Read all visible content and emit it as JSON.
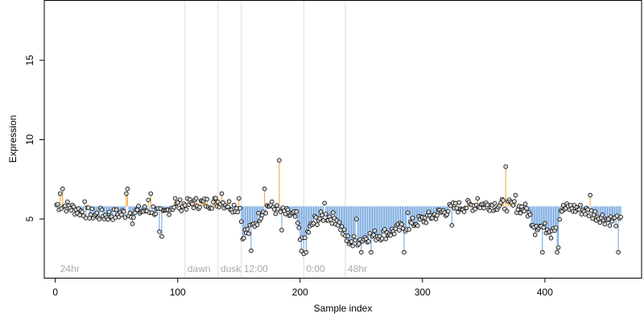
{
  "chart_data": {
    "type": "scatter",
    "xlabel": "Sample index",
    "ylabel": "Expression",
    "xlim": [
      -9,
      479
    ],
    "ylim": [
      1.3,
      18.8
    ],
    "x_ticks": [
      0,
      100,
      200,
      300,
      400
    ],
    "y_ticks": [
      5,
      10,
      15
    ],
    "baseline": 5.8,
    "colors": {
      "point_fill": "#d8d8d8",
      "point_stroke": "#000000",
      "above": "#f0a030",
      "below": "#6aa0dc",
      "phase_line": "#dcdcdc",
      "phase_text": "#a8a8a8",
      "axes": "#000000"
    },
    "phase_markers": [
      {
        "label": "24hr",
        "x": 2,
        "line": false
      },
      {
        "label": "dawn",
        "x": 106,
        "line": true
      },
      {
        "label": "dusk",
        "x": 133,
        "line": true
      },
      {
        "label": "12:00",
        "x": 152,
        "line": true
      },
      {
        "label": "0:00",
        "x": 203,
        "line": true
      },
      {
        "label": "48hr",
        "x": 237,
        "line": true
      }
    ],
    "anchors": [
      [
        0,
        5.9
      ],
      [
        10,
        5.8
      ],
      [
        20,
        5.5
      ],
      [
        30,
        5.3
      ],
      [
        40,
        5.2
      ],
      [
        50,
        5.3
      ],
      [
        60,
        5.4
      ],
      [
        70,
        5.5
      ],
      [
        80,
        5.6
      ],
      [
        88,
        5.2
      ],
      [
        95,
        5.8
      ],
      [
        105,
        5.9
      ],
      [
        115,
        6.0
      ],
      [
        125,
        6.0
      ],
      [
        135,
        6.1
      ],
      [
        145,
        5.8
      ],
      [
        151,
        5.7
      ],
      [
        153,
        4.1
      ],
      [
        158,
        4.2
      ],
      [
        163,
        4.7
      ],
      [
        170,
        5.6
      ],
      [
        175,
        5.9
      ],
      [
        182,
        5.5
      ],
      [
        190,
        5.3
      ],
      [
        197,
        5.1
      ],
      [
        201,
        3.3
      ],
      [
        206,
        4.1
      ],
      [
        212,
        4.9
      ],
      [
        220,
        5.2
      ],
      [
        230,
        5.0
      ],
      [
        238,
        3.7
      ],
      [
        245,
        3.6
      ],
      [
        255,
        3.9
      ],
      [
        265,
        4.0
      ],
      [
        275,
        4.2
      ],
      [
        285,
        4.5
      ],
      [
        295,
        4.8
      ],
      [
        305,
        5.1
      ],
      [
        315,
        5.4
      ],
      [
        325,
        5.7
      ],
      [
        335,
        5.8
      ],
      [
        345,
        5.9
      ],
      [
        355,
        5.9
      ],
      [
        365,
        5.9
      ],
      [
        375,
        5.8
      ],
      [
        385,
        5.6
      ],
      [
        390,
        4.8
      ],
      [
        400,
        4.4
      ],
      [
        410,
        4.6
      ],
      [
        413,
        5.6
      ],
      [
        420,
        5.7
      ],
      [
        430,
        5.6
      ],
      [
        440,
        5.3
      ],
      [
        450,
        5.0
      ],
      [
        462,
        4.8
      ]
    ],
    "highlights": [
      [
        4,
        6.6
      ],
      [
        6,
        6.9
      ],
      [
        24,
        6.1
      ],
      [
        37,
        5.7
      ],
      [
        58,
        6.6
      ],
      [
        59,
        6.9
      ],
      [
        63,
        4.7
      ],
      [
        76,
        6.2
      ],
      [
        78,
        6.6
      ],
      [
        85,
        4.2
      ],
      [
        87,
        3.9
      ],
      [
        98,
        6.3
      ],
      [
        136,
        6.6
      ],
      [
        150,
        6.3
      ],
      [
        154,
        3.8
      ],
      [
        160,
        3.0
      ],
      [
        171,
        6.9
      ],
      [
        183,
        8.7
      ],
      [
        185,
        4.3
      ],
      [
        203,
        2.8
      ],
      [
        205,
        2.9
      ],
      [
        220,
        6.0
      ],
      [
        243,
        3.3
      ],
      [
        246,
        5.0
      ],
      [
        250,
        2.9
      ],
      [
        258,
        2.9
      ],
      [
        285,
        2.9
      ],
      [
        288,
        5.4
      ],
      [
        324,
        4.6
      ],
      [
        345,
        6.3
      ],
      [
        368,
        8.3
      ],
      [
        376,
        6.5
      ],
      [
        392,
        4.0
      ],
      [
        398,
        2.9
      ],
      [
        405,
        3.8
      ],
      [
        410,
        2.9
      ],
      [
        411,
        3.2
      ],
      [
        437,
        6.5
      ],
      [
        460,
        2.9
      ]
    ],
    "n_points": 462,
    "seed": 7
  }
}
